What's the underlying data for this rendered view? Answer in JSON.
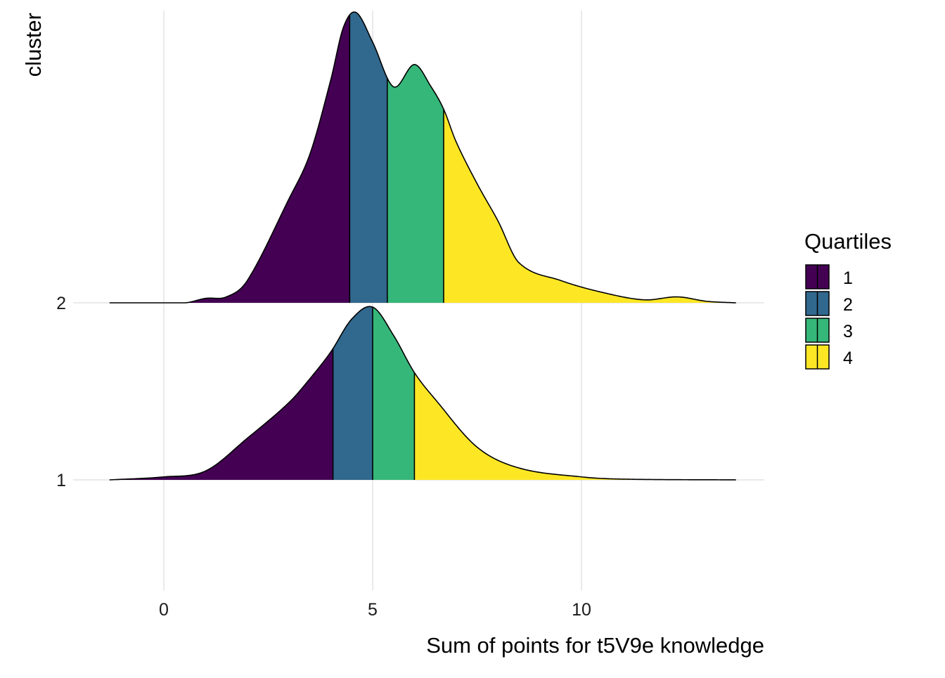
{
  "chart_data": {
    "type": "ridgeline-density",
    "xlabel": "Sum of points for t5V9e knowledge",
    "ylabel": "cluster",
    "xlim": [
      -1.3,
      13.7
    ],
    "x_ticks": [
      0,
      5,
      10
    ],
    "grid": true,
    "legend": {
      "title": "Quartiles",
      "position": "right",
      "entries": [
        {
          "label": "1",
          "color": "#440154"
        },
        {
          "label": "2",
          "color": "#31688E"
        },
        {
          "label": "3",
          "color": "#35B779"
        },
        {
          "label": "4",
          "color": "#FDE725"
        }
      ]
    },
    "clusters": [
      {
        "label": "1",
        "quartile_cuts": [
          4.05,
          5.0,
          6.0
        ],
        "density_x": [
          -1.3,
          0,
          1,
          2,
          3,
          3.5,
          4,
          4.5,
          5,
          5.5,
          6,
          6.5,
          7.5,
          8.5,
          10,
          11,
          13.7
        ],
        "density_y": [
          0.0,
          0.02,
          0.06,
          0.28,
          0.52,
          0.68,
          0.86,
          1.08,
          1.16,
          0.97,
          0.72,
          0.54,
          0.22,
          0.08,
          0.02,
          0.005,
          0.0
        ]
      },
      {
        "label": "2",
        "quartile_cuts": [
          4.45,
          5.35,
          6.7
        ],
        "density_x": [
          -1.3,
          0.5,
          1,
          1.5,
          2,
          3,
          3.5,
          4,
          4.3,
          4.6,
          5,
          5.5,
          6,
          6.4,
          6.7,
          7,
          7.5,
          8,
          8.5,
          9.5,
          10.5,
          11.5,
          12.3,
          13,
          13.7
        ],
        "density_y": [
          0.0,
          0.0,
          0.03,
          0.04,
          0.15,
          0.7,
          1.0,
          1.5,
          1.85,
          1.95,
          1.75,
          1.45,
          1.6,
          1.45,
          1.3,
          1.08,
          0.8,
          0.55,
          0.27,
          0.15,
          0.07,
          0.02,
          0.04,
          0.01,
          0.0
        ]
      }
    ]
  }
}
